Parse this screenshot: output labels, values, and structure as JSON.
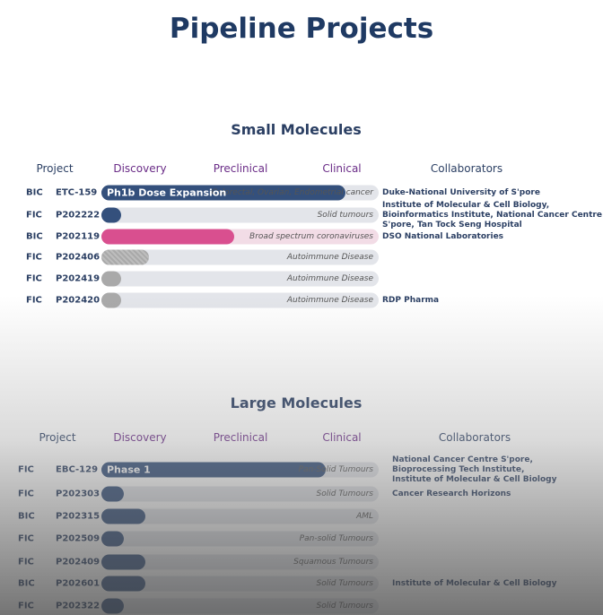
{
  "title": "Pipeline Projects",
  "sections": [
    {
      "heading": "Small Molecules",
      "columns": [
        "Project",
        "Discovery",
        "Preclinical",
        "Clinical",
        "Collaborators"
      ],
      "rows": [
        {
          "type": "BIC",
          "code": "ETC-159",
          "phase_label": "Ph1b Dose Expansion",
          "indication": "Colorectal, Ovarian, Endometrial cancer",
          "progress": 0.88,
          "color": "#34507c",
          "collaborators": [
            "Duke-National University of S'pore"
          ]
        },
        {
          "type": "FIC",
          "code": "P202222",
          "indication": "Solid tumours",
          "progress": 0.07,
          "color": "#34507c",
          "collaborators": [
            "Institute of Molecular & Cell Biology,",
            "Bioinformatics Institute, National Cancer Centre",
            "S'pore, Tan Tock Seng Hospital"
          ]
        },
        {
          "type": "BIC",
          "code": "P202119",
          "indication": "Broad spectrum coronaviruses",
          "progress": 0.48,
          "color": "#d94f8f",
          "collaborators": [
            "DSO National Laboratories"
          ]
        },
        {
          "type": "FIC",
          "code": "P202406",
          "indication": "Autoimmune Disease",
          "progress": 0.17,
          "color": "#a9a9a9",
          "collaborators": []
        },
        {
          "type": "FIC",
          "code": "P202419",
          "indication": "Autoimmune Disease",
          "progress": 0.07,
          "color": "#a9a9a9",
          "collaborators": []
        },
        {
          "type": "FIC",
          "code": "P202420",
          "indication": "Autoimmune Disease",
          "progress": 0.07,
          "color": "#a9a9a9",
          "collaborators": [
            "RDP Pharma"
          ]
        }
      ]
    },
    {
      "heading": "Large Molecules",
      "columns": [
        "Project",
        "Discovery",
        "Preclinical",
        "Clinical",
        "Collaborators"
      ],
      "rows": [
        {
          "type": "FIC",
          "code": "EBC-129",
          "phase_label": "Phase 1",
          "indication": "Pan-Solid Tumours",
          "progress": 0.81,
          "color": "#34507c",
          "collaborators": [
            "National Cancer Centre S'pore,",
            "Bioprocessing Tech Institute,",
            "Institute of Molecular & Cell Biology"
          ]
        },
        {
          "type": "FIC",
          "code": "P202303",
          "indication": "Solid Tumours",
          "progress": 0.08,
          "color": "#34507c",
          "collaborators": [
            "Cancer Research Horizons"
          ]
        },
        {
          "type": "BIC",
          "code": "P202315",
          "indication": "AML",
          "progress": 0.16,
          "color": "#34507c",
          "collaborators": []
        },
        {
          "type": "FIC",
          "code": "P202509",
          "indication": "Pan-solid Tumours",
          "progress": 0.08,
          "color": "#34507c",
          "collaborators": []
        },
        {
          "type": "FIC",
          "code": "P202409",
          "indication": "Squamous Tumours",
          "progress": 0.16,
          "color": "#34507c",
          "collaborators": []
        },
        {
          "type": "BIC",
          "code": "P202601",
          "indication": "Solid Tumours",
          "progress": 0.16,
          "color": "#34507c",
          "collaborators": [
            "Institute of Molecular & Cell Biology"
          ]
        },
        {
          "type": "FIC",
          "code": "P202322",
          "indication": "Solid Tumours",
          "progress": 0.08,
          "color": "#34507c",
          "collaborators": []
        }
      ]
    }
  ]
}
